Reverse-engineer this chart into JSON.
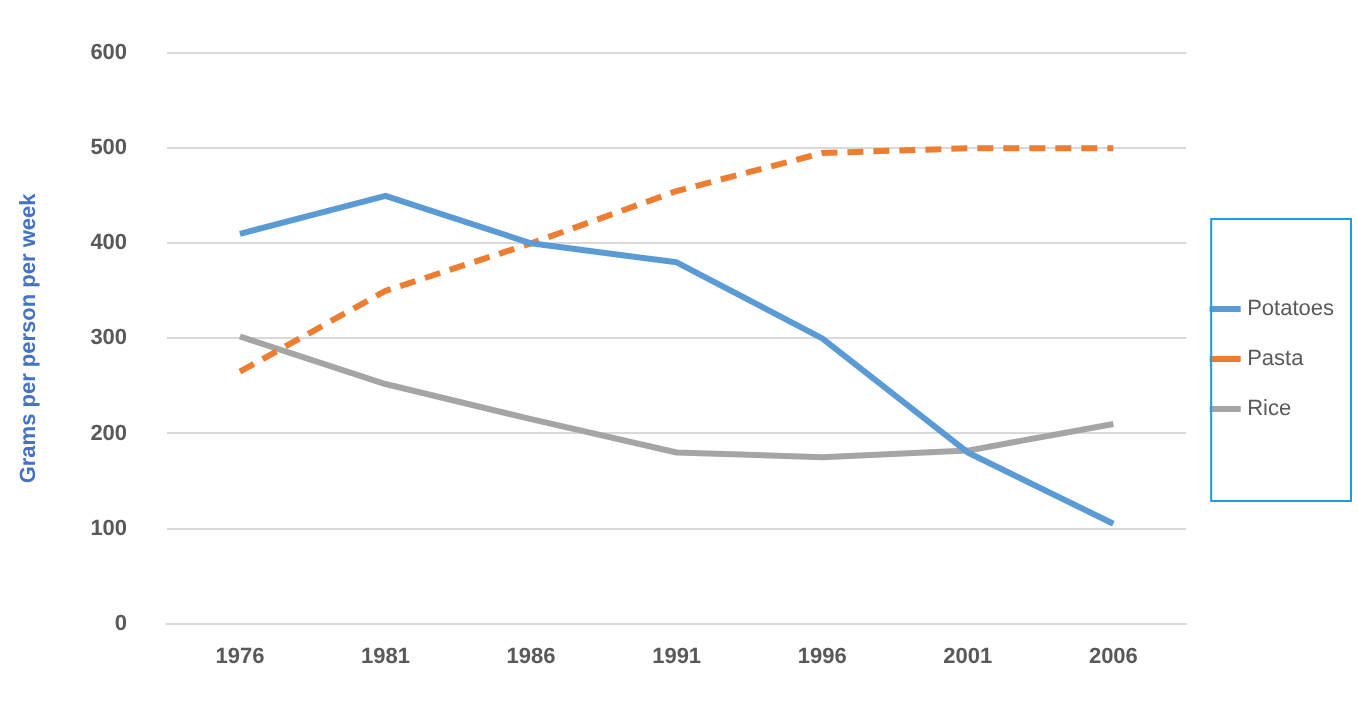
{
  "chart_data": {
    "type": "line",
    "ylabel": "Grams per person per week",
    "categories": [
      "1976",
      "1981",
      "1986",
      "1991",
      "1996",
      "2001",
      "2006"
    ],
    "series": [
      {
        "name": "Potatoes",
        "color": "#5b9bd5",
        "values": [
          410,
          450,
          400,
          380,
          300,
          180,
          105
        ],
        "line_style": "solid"
      },
      {
        "name": "Pasta",
        "color": "#ed7d31",
        "values": [
          265,
          350,
          400,
          455,
          495,
          500,
          500
        ],
        "line_style": "dashed"
      },
      {
        "name": "Rice",
        "color": "#a5a5a5",
        "values": [
          302,
          252,
          215,
          180,
          175,
          182,
          210
        ],
        "line_style": "solid"
      }
    ],
    "ylim": [
      0,
      600
    ],
    "yticks": [
      0,
      100,
      200,
      300,
      400,
      500,
      600
    ],
    "grid": "y",
    "legend": "right",
    "marker": "none"
  }
}
